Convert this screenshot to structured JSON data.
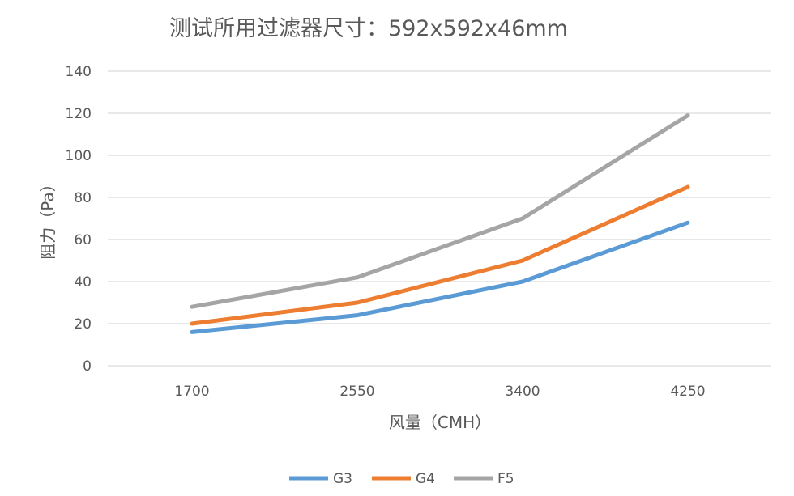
{
  "chart_data": {
    "type": "line",
    "title": "测试所用过滤器尺寸：592x592x46mm",
    "xlabel": "风量（CMH）",
    "ylabel": "阻力（Pa）",
    "categories": [
      "1700",
      "2550",
      "3400",
      "4250"
    ],
    "ylim": [
      0,
      140
    ],
    "yticks": [
      0,
      20,
      40,
      60,
      80,
      100,
      120,
      140
    ],
    "grid": true,
    "legend": "bottom",
    "series": [
      {
        "name": "G3",
        "color": "#5b9bd5",
        "values": [
          16,
          24,
          40,
          68
        ]
      },
      {
        "name": "G4",
        "color": "#ed7d31",
        "values": [
          20,
          30,
          50,
          85
        ]
      },
      {
        "name": "F5",
        "color": "#a5a5a5",
        "values": [
          28,
          42,
          70,
          119
        ]
      }
    ]
  }
}
